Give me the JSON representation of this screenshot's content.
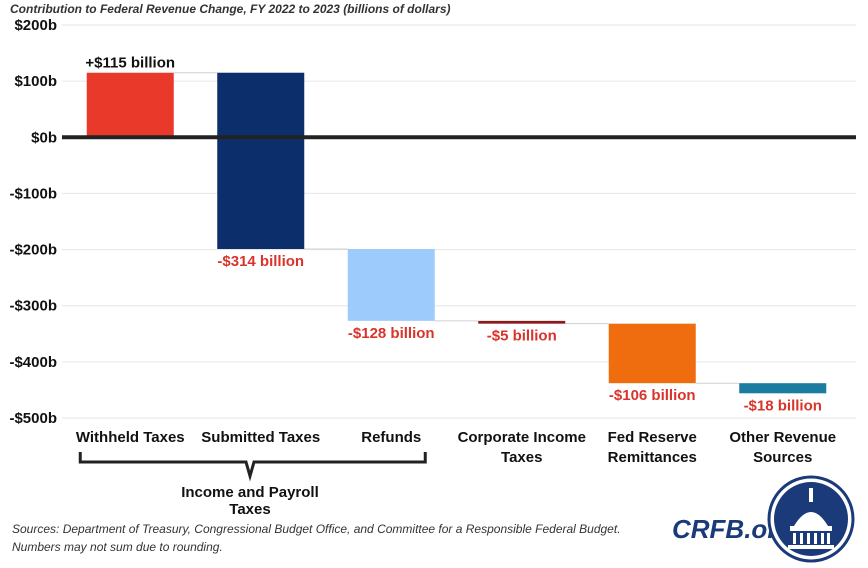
{
  "header": {
    "title": "Contribution to Federal Revenue Change, FY 2022 to 2023 (billions of dollars)"
  },
  "chart_data": {
    "type": "bar",
    "subtype": "waterfall",
    "title": "Contribution to Federal Revenue Change, FY 2022 to 2023 (billions of dollars)",
    "xlabel": "",
    "ylabel": "",
    "ylim": [
      -500,
      200
    ],
    "grid": true,
    "y_ticks": [
      200,
      100,
      0,
      -100,
      -200,
      -300,
      -400,
      -500
    ],
    "y_tick_labels": [
      "$200b",
      "$100b",
      "$0b",
      "-$100b",
      "-$200b",
      "-$300b",
      "-$400b",
      "-$500b"
    ],
    "categories": [
      [
        "Withheld Taxes"
      ],
      [
        "Submitted Taxes"
      ],
      [
        "Refunds"
      ],
      [
        "Corporate Income",
        "Taxes"
      ],
      [
        "Fed Reserve",
        "Remittances"
      ],
      [
        "Other Revenue",
        "Sources"
      ]
    ],
    "values": [
      115,
      -314,
      -128,
      -5,
      -106,
      -18
    ],
    "cumulative_start": [
      0,
      115,
      -199,
      -327,
      -332,
      -438
    ],
    "cumulative_end": [
      115,
      -199,
      -327,
      -332,
      -438,
      -456
    ],
    "data_labels": [
      "+$115 billion",
      "-$314 billion",
      "-$128 billion",
      "-$5 billion",
      "-$106 billion",
      "-$18 billion"
    ],
    "colors": [
      "#e8392b",
      "#0c2f6b",
      "#9dcbfb",
      "#8a1b1b",
      "#ef6c0f",
      "#1a7c9e"
    ],
    "label_colors": [
      "#111111",
      "#d9342b",
      "#d9342b",
      "#d9342b",
      "#d9342b",
      "#d9342b"
    ],
    "group": {
      "label": "Income and Payroll Taxes",
      "spans_categories": [
        0,
        2
      ]
    }
  },
  "footer": {
    "sources_line1": "Sources: Department of Treasury, Congressional Budget Office, and Committee for a Responsible Federal Budget.",
    "sources_line2": "Numbers may not sum due to rounding."
  },
  "brand": {
    "text": "CRFB.org",
    "color": "#1b3a7a",
    "seal_icon": "capitol-dome-seal-icon"
  }
}
